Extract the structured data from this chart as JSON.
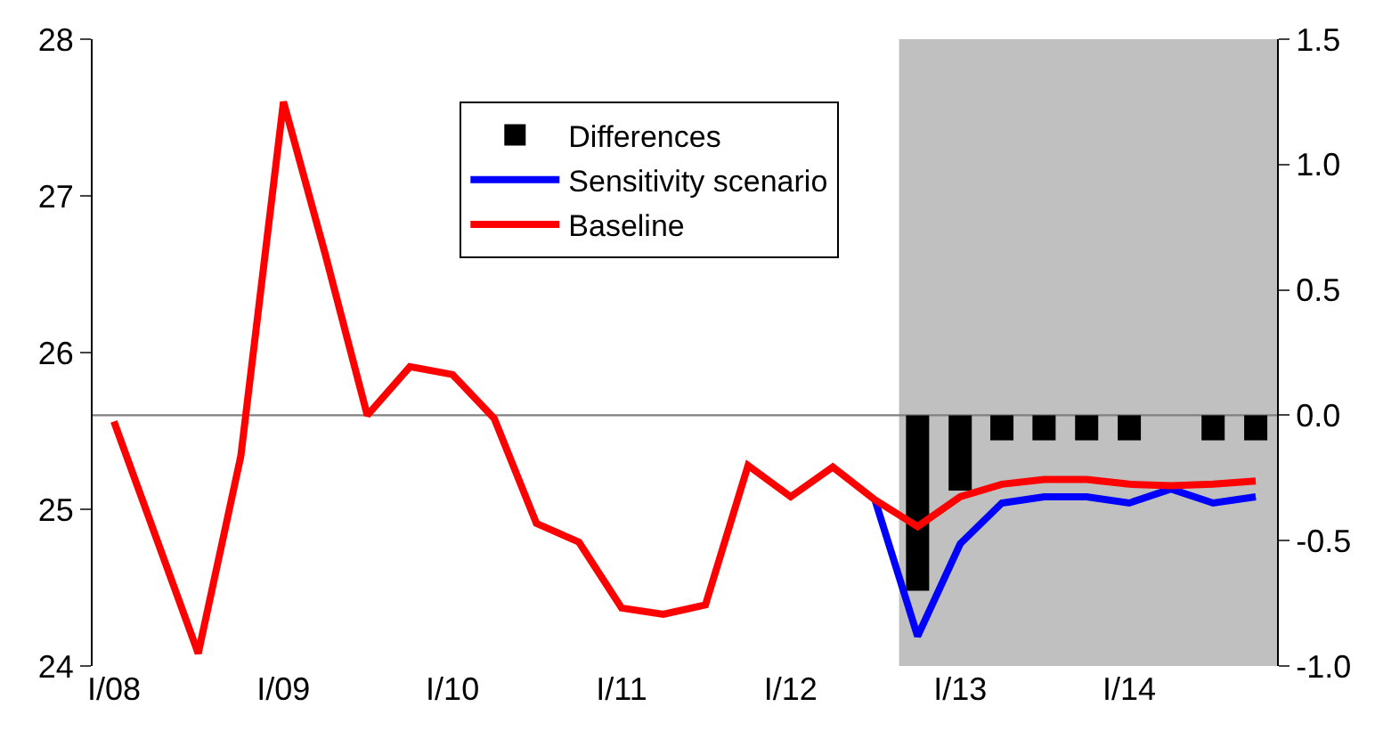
{
  "chart_data": {
    "type": "line",
    "x": [
      "2008-01",
      "2008-04",
      "2008-07",
      "2008-10",
      "2009-01",
      "2009-04",
      "2009-07",
      "2009-10",
      "2010-01",
      "2010-04",
      "2010-07",
      "2010-10",
      "2011-01",
      "2011-04",
      "2011-07",
      "2011-10",
      "2012-01",
      "2012-04",
      "2012-07",
      "2012-10",
      "2013-01",
      "2013-04",
      "2013-07",
      "2013-10",
      "2014-01",
      "2014-04",
      "2014-07",
      "2014-10"
    ],
    "series": [
      {
        "name": "Differences",
        "type": "bar",
        "axis": "y2",
        "color": "#000000",
        "values": [
          null,
          null,
          null,
          null,
          null,
          null,
          null,
          null,
          null,
          null,
          null,
          null,
          null,
          null,
          null,
          null,
          null,
          null,
          null,
          -0.7,
          -0.3,
          -0.1,
          -0.1,
          -0.1,
          -0.1,
          0,
          -0.1,
          -0.1
        ]
      },
      {
        "name": "Sensitivity scenario",
        "color": "#0000ff",
        "values": [
          null,
          null,
          null,
          null,
          null,
          null,
          null,
          null,
          null,
          null,
          null,
          null,
          null,
          null,
          null,
          null,
          null,
          null,
          25.06,
          24.19,
          24.78,
          25.04,
          25.08,
          25.08,
          25.04,
          25.13,
          25.04,
          25.08
        ]
      },
      {
        "name": "Baseline",
        "color": "#ff0000",
        "values": [
          25.56,
          24.82,
          24.08,
          25.34,
          27.6,
          26.63,
          25.6,
          25.91,
          25.86,
          25.58,
          24.91,
          24.79,
          24.37,
          24.33,
          24.39,
          25.28,
          25.08,
          25.27,
          25.06,
          24.89,
          25.08,
          25.16,
          25.19,
          25.19,
          25.16,
          25.15,
          25.16,
          25.18
        ]
      }
    ],
    "xlim": [
      "2007-11-16",
      "2014-11-16"
    ],
    "xticks": [
      {
        "value": "2008-01",
        "label": "I/08"
      },
      {
        "value": "2009-01",
        "label": "I/09"
      },
      {
        "value": "2010-01",
        "label": "I/10"
      },
      {
        "value": "2011-01",
        "label": "I/11"
      },
      {
        "value": "2012-01",
        "label": "I/12"
      },
      {
        "value": "2013-01",
        "label": "I/13"
      },
      {
        "value": "2014-01",
        "label": "I/14"
      }
    ],
    "ylim": [
      24,
      28
    ],
    "yticks": [
      24,
      25,
      26,
      27,
      28
    ],
    "y2lim": [
      -1.0,
      1.5
    ],
    "y2ticks": [
      {
        "value": -1,
        "label": "-1.0"
      },
      {
        "value": -0.5,
        "label": "-0.5"
      },
      {
        "value": 0,
        "label": "0.0"
      },
      {
        "value": 0.5,
        "label": "0.5"
      },
      {
        "value": 1,
        "label": "1.0"
      },
      {
        "value": 1.5,
        "label": "1.5"
      }
    ],
    "ref_lines": [
      {
        "axis": "y2",
        "value": 0,
        "color": "#808080"
      }
    ],
    "bands": [
      {
        "axis": "x",
        "from": "2012-08-22",
        "to": "2014-11-16",
        "color": "#c0c0c0"
      }
    ],
    "grid": false,
    "legend": "top",
    "marker": "none",
    "line_style": "solid"
  }
}
